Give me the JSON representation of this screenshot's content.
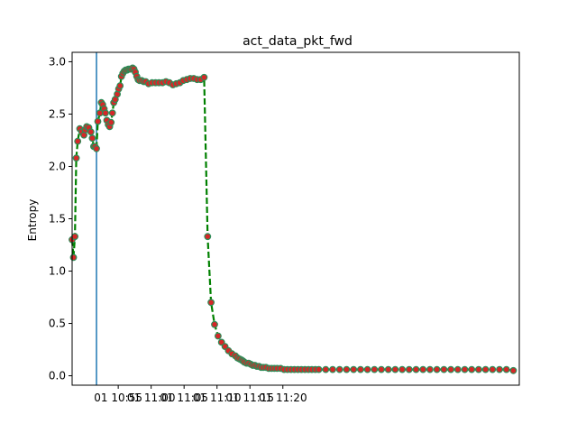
{
  "chart_data": {
    "type": "line",
    "title": "act_data_pkt_fwd",
    "xlabel": "",
    "ylabel": "Entropy",
    "ylim": [
      -0.09,
      3.09
    ],
    "xlim_minutes": [
      10.0,
      83.0
    ],
    "x_unit": "minutes after 10:45",
    "yticks": [
      0.0,
      0.5,
      1.0,
      1.5,
      2.0,
      2.5,
      3.0
    ],
    "ytick_labels": [
      "0.0",
      "0.5",
      "1.0",
      "1.5",
      "2.0",
      "2.5",
      "3.0"
    ],
    "xticks_minutes": [
      10,
      15,
      20,
      25,
      30,
      35
    ],
    "xtick_labels": [
      "01 10:55",
      "01 11:00",
      "01 11:05",
      "01 11:10",
      "01 11:15",
      "01 11:20"
    ],
    "vertical_line_minutes": 6.7,
    "colors": {
      "line": "#008000",
      "marker_face": "#d62728",
      "marker_edge": "#2e8b57",
      "vline": "#1f77b4"
    },
    "series": [
      {
        "name": "act_data_pkt_fwd",
        "x": [
          6.5,
          6.7,
          6.9,
          7.1,
          7.3,
          7.6,
          7.9,
          8.2,
          8.4,
          8.6,
          8.9,
          9.2,
          9.4,
          9.6,
          9.8,
          10.0,
          10.2,
          10.5,
          10.7,
          10.9,
          11.1,
          11.3,
          11.5,
          11.7,
          11.9,
          12.1,
          12.3,
          12.5,
          12.7,
          13.0,
          13.2,
          13.4,
          13.6,
          13.8,
          14.0,
          14.2,
          14.4,
          14.6,
          14.8,
          15.0,
          15.2,
          15.4,
          15.6,
          15.8,
          16.0,
          16.2,
          16.5,
          16.8,
          17.1,
          17.5,
          18.0,
          18.5,
          19.0,
          19.5,
          20.0,
          20.5,
          21.0,
          21.5,
          22.0,
          22.5,
          23.0,
          23.5,
          24.0,
          24.5,
          25.0,
          25.5,
          26.0,
          26.5,
          27.0,
          27.5,
          28.0,
          28.5,
          29.0,
          29.5,
          30.0,
          30.3,
          30.6,
          30.9,
          31.1,
          31.3,
          31.6,
          31.9,
          32.2,
          32.5,
          32.8,
          33.1,
          33.4,
          33.7,
          34.0,
          34.4,
          34.8,
          35.2,
          35.6,
          36.0,
          36.5,
          37.0,
          37.5,
          38.0,
          38.5,
          39.0,
          39.5,
          40.0,
          40.5,
          41.0,
          41.5,
          42.0,
          43.0,
          44.0,
          45.0,
          46.0,
          47.0,
          48.0,
          49.0,
          50.0,
          51.0,
          52.0,
          53.0,
          54.0,
          55.0,
          56.0,
          57.0,
          58.0,
          59.0,
          60.0,
          61.0,
          62.0,
          63.0,
          64.0,
          65.0,
          66.0,
          67.0,
          68.0,
          69.0,
          70.0
        ],
        "y": [
          1.3,
          1.13,
          1.33,
          2.08,
          2.24,
          2.36,
          2.33,
          2.3,
          2.35,
          2.38,
          2.37,
          2.33,
          2.27,
          2.19,
          2.19,
          2.17,
          2.43,
          2.51,
          2.61,
          2.59,
          2.55,
          2.51,
          2.44,
          2.4,
          2.38,
          2.42,
          2.51,
          2.61,
          2.64,
          2.69,
          2.74,
          2.77,
          2.86,
          2.89,
          2.91,
          2.92,
          2.92,
          2.93,
          2.93,
          2.93,
          2.94,
          2.93,
          2.9,
          2.86,
          2.83,
          2.82,
          2.82,
          2.81,
          2.81,
          2.79,
          2.8,
          2.8,
          2.8,
          2.8,
          2.81,
          2.8,
          2.78,
          2.79,
          2.8,
          2.82,
          2.83,
          2.84,
          2.84,
          2.83,
          2.83,
          2.85,
          1.33,
          0.7,
          0.49,
          0.38,
          0.32,
          0.28,
          0.24,
          0.21,
          0.19,
          0.17,
          0.16,
          0.15,
          0.14,
          0.13,
          0.12,
          0.12,
          0.11,
          0.1,
          0.1,
          0.09,
          0.09,
          0.08,
          0.08,
          0.08,
          0.07,
          0.07,
          0.07,
          0.07,
          0.07,
          0.06,
          0.06,
          0.06,
          0.06,
          0.06,
          0.06,
          0.06,
          0.06,
          0.06,
          0.06,
          0.06,
          0.06,
          0.06,
          0.06,
          0.06,
          0.06,
          0.06,
          0.06,
          0.06,
          0.06,
          0.06,
          0.06,
          0.06,
          0.06,
          0.06,
          0.06,
          0.06,
          0.06,
          0.06,
          0.06,
          0.06,
          0.06,
          0.06,
          0.06,
          0.06,
          0.06,
          0.06,
          0.06,
          0.05
        ]
      }
    ]
  }
}
